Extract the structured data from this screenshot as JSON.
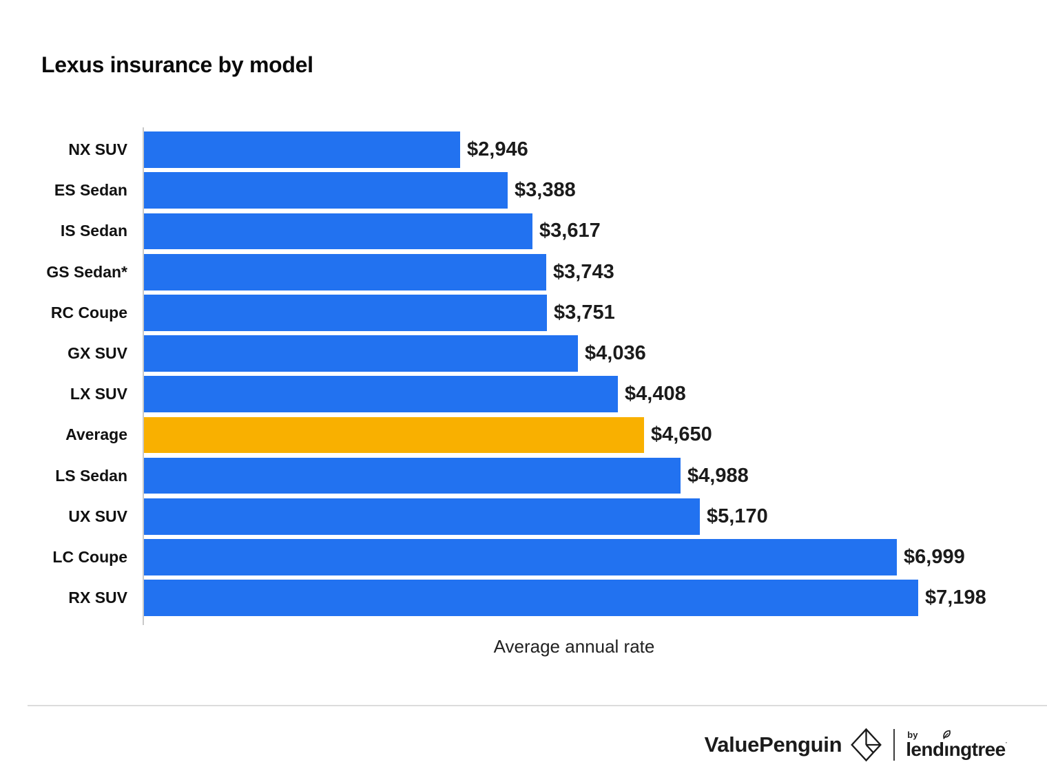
{
  "title": "Lexus insurance by model",
  "chart_data": {
    "type": "bar",
    "orientation": "horizontal",
    "title": "Lexus insurance by model",
    "xlabel": "Average annual rate",
    "ylabel": "",
    "categories": [
      "NX SUV",
      "ES Sedan",
      "IS Sedan",
      "GS Sedan*",
      "RC Coupe",
      "GX SUV",
      "LX SUV",
      "Average",
      "LS Sedan",
      "UX SUV",
      "LC Coupe",
      "RX SUV"
    ],
    "values": [
      2946,
      3388,
      3617,
      3743,
      3751,
      4036,
      4408,
      4650,
      4988,
      5170,
      6999,
      7198
    ],
    "value_labels": [
      "$2,946",
      "$3,388",
      "$3,617",
      "$3,743",
      "$3,751",
      "$4,036",
      "$4,408",
      "$4,650",
      "$4,988",
      "$5,170",
      "$6,999",
      "$7,198"
    ],
    "xlim": [
      0,
      7500
    ],
    "grid": false,
    "legend": "none",
    "bar_color": "#2272F0",
    "highlight_index": 7,
    "highlight_color": "#F9B000",
    "axis_line_color": "#c9c9c9"
  },
  "footer": {
    "valuepenguin": "ValuePenguin",
    "by": "by",
    "lendingtree_part1": "lend",
    "lendingtree_dotless_i": "ı",
    "lendingtree_part2": "ngtree",
    "trademark": "·"
  }
}
